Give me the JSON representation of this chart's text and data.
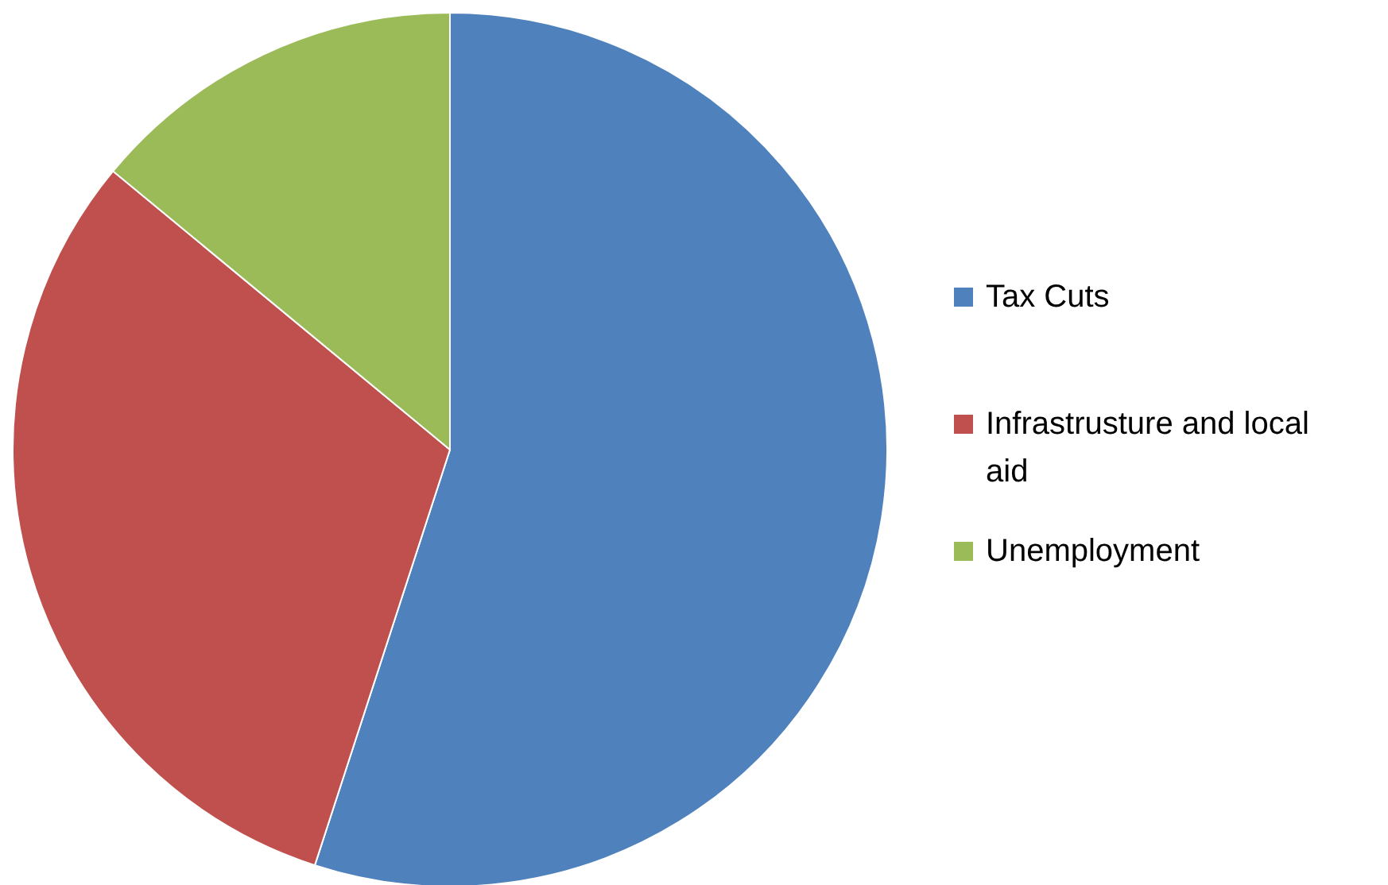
{
  "chart_data": {
    "type": "pie",
    "categories": [
      "Tax Cuts",
      "Infrastrusture and local aid",
      "Unemployment"
    ],
    "values": [
      55,
      31,
      14
    ],
    "colors": [
      "#4f81bd",
      "#c0504d",
      "#9bbb59"
    ],
    "legend": "right"
  }
}
